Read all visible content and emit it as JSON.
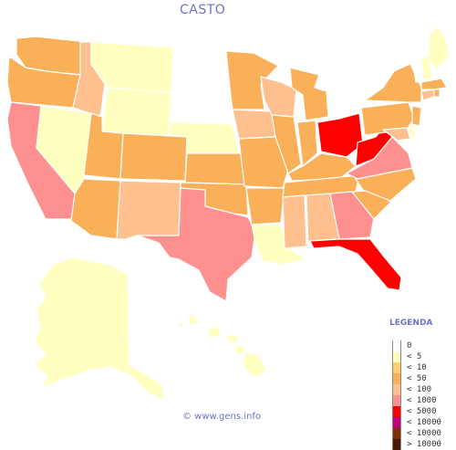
{
  "title": "CASTO",
  "legend": {
    "title": "LEGENDA",
    "items": [
      {
        "label": "0",
        "color": "#ffffff"
      },
      {
        "label": "< 5",
        "color": "#ffffc0"
      },
      {
        "label": "< 10",
        "color": "#ffd070"
      },
      {
        "label": "< 50",
        "color": "#f9b058"
      },
      {
        "label": "< 100",
        "color": "#ffc090"
      },
      {
        "label": "< 1000",
        "color": "#ff9090"
      },
      {
        "label": "< 5000",
        "color": "#ff0000"
      },
      {
        "label": "< 10000",
        "color": "#c0007a"
      },
      {
        "label": "< 10000",
        "color": "#803000"
      },
      {
        "label": "> 10000",
        "color": "#4a1800"
      }
    ]
  },
  "credit": "© www.gens.info",
  "colors": {
    "white": "#ffffff",
    "lt5": "#ffffc0",
    "lt50": "#f9b058",
    "lt100": "#ffc090",
    "lt1000": "#ff9090",
    "lt5000": "#ff0000"
  }
}
